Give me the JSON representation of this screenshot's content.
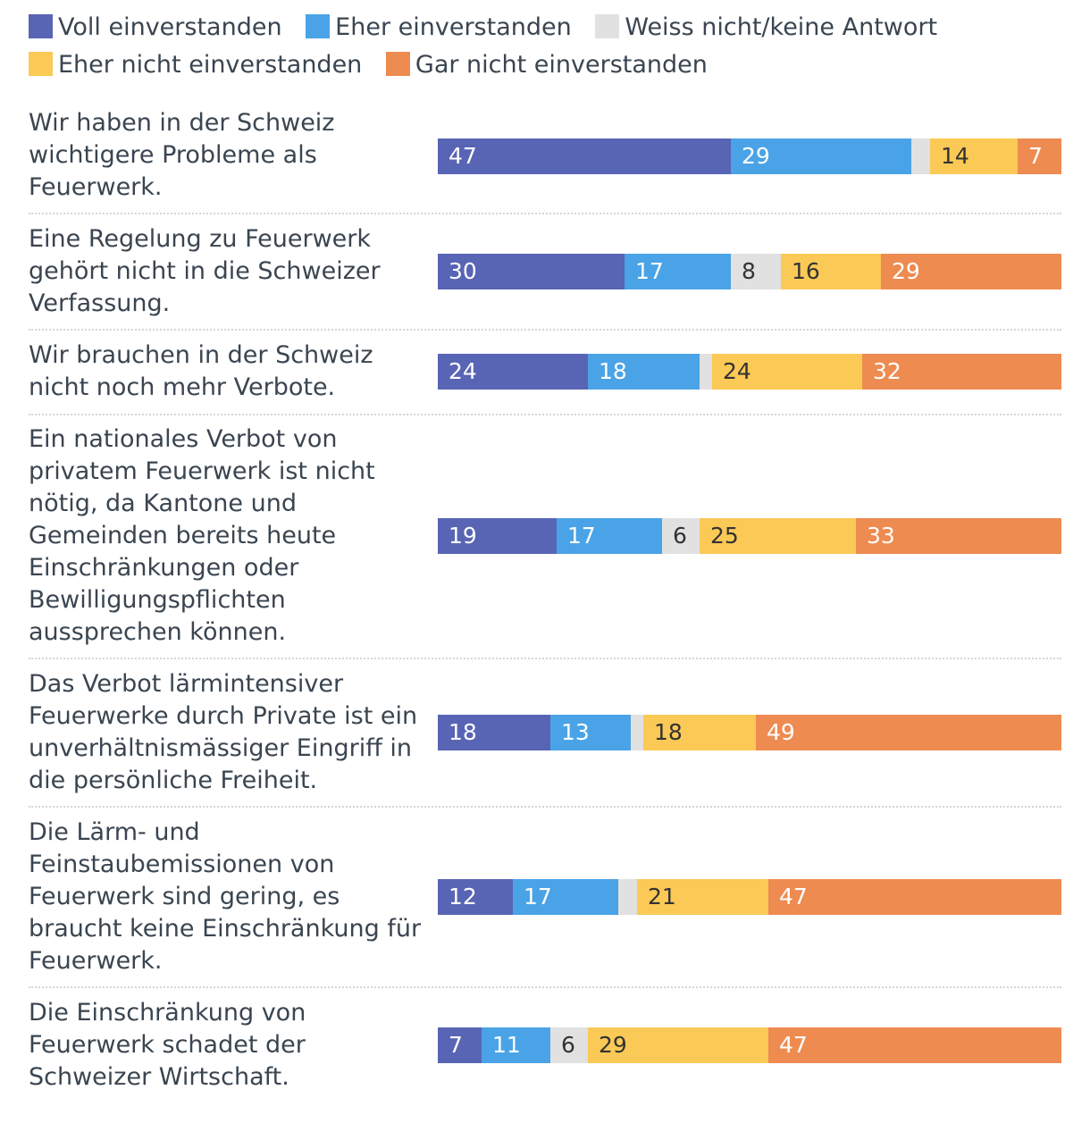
{
  "chart_data": {
    "type": "bar",
    "orientation": "horizontal",
    "stacked": true,
    "unit": "%",
    "legend_position": "top",
    "series": [
      {
        "name": "Voll einverstanden",
        "color": "#5864b4",
        "text_color": "#ffffff"
      },
      {
        "name": "Eher einverstanden",
        "color": "#4aa3e6",
        "text_color": "#ffffff"
      },
      {
        "name": "Weiss nicht/keine Antwort",
        "color": "#e1e1e1",
        "text_color": "#333333"
      },
      {
        "name": "Eher nicht einverstanden",
        "color": "#fbc956",
        "text_color": "#333333"
      },
      {
        "name": "Gar nicht einverstanden",
        "color": "#ee8b51",
        "text_color": "#ffffff"
      }
    ],
    "rows": [
      {
        "label": "Wir haben in der Schweiz wichtigere Probleme als Feuerwerk.",
        "values": [
          47,
          29,
          3,
          14,
          7
        ],
        "value_labels": [
          "47",
          "29",
          "",
          "14",
          "7"
        ]
      },
      {
        "label": "Eine Regelung zu Feuerwerk gehört nicht in die Schweizer Verfassung.",
        "values": [
          30,
          17,
          8,
          16,
          29
        ],
        "value_labels": [
          "30",
          "17",
          "8",
          "16",
          "29"
        ]
      },
      {
        "label": "Wir brauchen in der Schweiz nicht noch mehr Verbote.",
        "values": [
          24,
          18,
          2,
          24,
          32
        ],
        "value_labels": [
          "24",
          "18",
          "",
          "24",
          "32"
        ]
      },
      {
        "label": "Ein nationales Verbot von privatem Feuerwerk ist nicht nötig, da Kantone und Gemeinden bereits heute Einschränkungen oder Bewilligungspflichten aussprechen können.",
        "values": [
          19,
          17,
          6,
          25,
          33
        ],
        "value_labels": [
          "19",
          "17",
          "6",
          "25",
          "33"
        ]
      },
      {
        "label": "Das Verbot lärmintensiver Feuerwerke durch Private ist ein unverhältnismässiger Eingriff in die persönliche Freiheit.",
        "values": [
          18,
          13,
          2,
          18,
          49
        ],
        "value_labels": [
          "18",
          "13",
          "",
          "18",
          "49"
        ]
      },
      {
        "label": "Die Lärm- und Feinstaubemissionen von Feuerwerk sind gering, es braucht keine Einschränkung für Feuerwerk.",
        "values": [
          12,
          17,
          3,
          21,
          47
        ],
        "value_labels": [
          "12",
          "17",
          "",
          "21",
          "47"
        ]
      },
      {
        "label": "Die Einschränkung von Feuerwerk schadet der Schweizer Wirtschaft.",
        "values": [
          7,
          11,
          6,
          29,
          47
        ],
        "value_labels": [
          "7",
          "11",
          "6",
          "29",
          "47"
        ]
      }
    ]
  }
}
